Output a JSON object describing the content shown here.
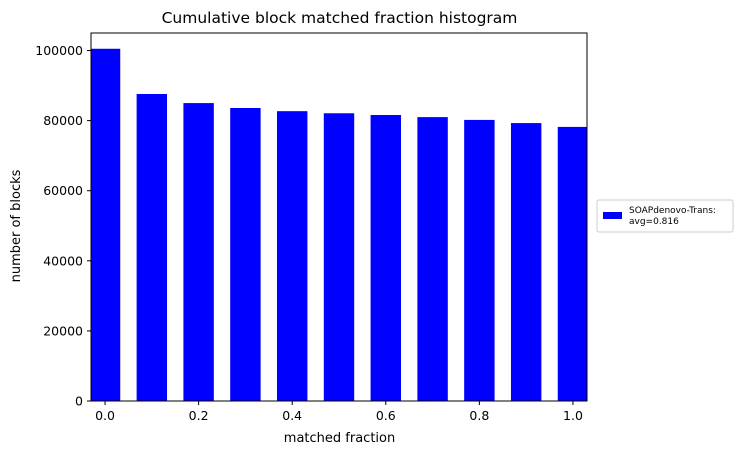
{
  "chart_data": {
    "type": "bar",
    "title": "Cumulative block matched fraction histogram",
    "xlabel": "matched fraction",
    "ylabel": "number of blocks",
    "x": [
      0.0,
      0.1,
      0.2,
      0.3,
      0.4,
      0.5,
      0.6,
      0.7,
      0.8,
      0.9,
      1.0
    ],
    "series": [
      {
        "name": "SOAPdenovo-Trans:\navg=0.816",
        "name_lines": [
          "SOAPdenovo-Trans:",
          "avg=0.816"
        ],
        "color": "#0000ff",
        "values": [
          100500,
          87600,
          85000,
          83600,
          82700,
          82100,
          81600,
          81000,
          80200,
          79300,
          78200
        ]
      }
    ],
    "xlim": [
      -0.03,
      1.03
    ],
    "ylim": [
      0,
      105000
    ],
    "xticks": [
      0.0,
      0.2,
      0.4,
      0.6,
      0.8,
      1.0
    ],
    "xtick_labels": [
      "0.0",
      "0.2",
      "0.4",
      "0.6",
      "0.8",
      "1.0"
    ],
    "yticks": [
      0,
      20000,
      40000,
      60000,
      80000,
      100000
    ],
    "ytick_labels": [
      "0",
      "20000",
      "40000",
      "60000",
      "80000",
      "100000"
    ],
    "bar_width": 0.065,
    "grid": false,
    "legend_position": "right, outside plot area"
  }
}
